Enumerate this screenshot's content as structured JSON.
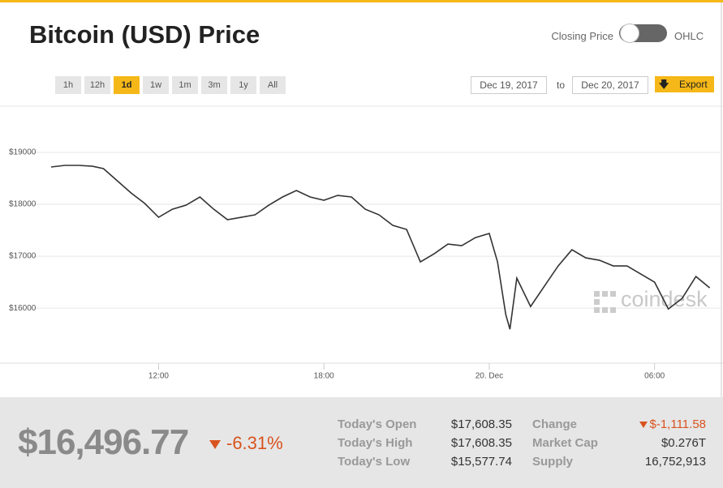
{
  "header": {
    "title": "Bitcoin (USD) Price",
    "toggle_left": "Closing Price",
    "toggle_right": "OHLC"
  },
  "ranges": {
    "options": [
      "1h",
      "12h",
      "1d",
      "1w",
      "1m",
      "3m",
      "1y",
      "All"
    ],
    "active": "1d"
  },
  "dates": {
    "from": "Dec 19, 2017",
    "separator": "to",
    "to": "Dec 20, 2017",
    "export": "Export"
  },
  "chart_data": {
    "type": "line",
    "color": "#333333",
    "grid": true,
    "watermark": "coindesk",
    "x": [
      8.1,
      8.6,
      9.1,
      9.6,
      10.0,
      10.5,
      11.0,
      11.5,
      12.0,
      12.5,
      13.0,
      13.5,
      14.0,
      14.5,
      15.0,
      15.5,
      16.0,
      16.5,
      17.0,
      17.5,
      18.0,
      18.5,
      19.0,
      19.5,
      20.0,
      20.5,
      21.0,
      21.5,
      22.0,
      22.5,
      23.0,
      23.5,
      24.0,
      24.3,
      24.6,
      24.75,
      25.0,
      25.5,
      26.0,
      26.5,
      27.0,
      27.5,
      28.0,
      28.5,
      29.0,
      29.5,
      30.0,
      30.5,
      31.0,
      31.5,
      32.0
    ],
    "values": [
      18719,
      18750,
      18750,
      18734,
      18688,
      18453,
      18219,
      18016,
      17750,
      17906,
      17984,
      18141,
      17906,
      17703,
      17750,
      17797,
      17984,
      18141,
      18266,
      18141,
      18078,
      18172,
      18141,
      17906,
      17797,
      17594,
      17516,
      16891,
      17047,
      17234,
      17203,
      17359,
      17438,
      16891,
      15875,
      15594,
      16578,
      16031,
      16422,
      16813,
      17125,
      16969,
      16922,
      16813,
      16813,
      16656,
      16500,
      15984,
      16188,
      16609,
      16391
    ],
    "xlim": [
      8.1,
      32.1
    ],
    "ylim": [
      14940,
      19890
    ],
    "xticks": [
      {
        "value": 12,
        "label": "12:00"
      },
      {
        "value": 18,
        "label": "18:00"
      },
      {
        "value": 24,
        "label": "20. Dec"
      },
      {
        "value": 30,
        "label": "06:00"
      }
    ],
    "yticks": [
      {
        "value": 16000,
        "label": "$16000"
      },
      {
        "value": 17000,
        "label": "$17000"
      },
      {
        "value": 18000,
        "label": "$18000"
      },
      {
        "value": 19000,
        "label": "$19000"
      }
    ]
  },
  "summary": {
    "price": "$16,496.77",
    "change_pct": "-6.31%",
    "left": [
      {
        "label": "Today's Open",
        "value": "$17,608.35"
      },
      {
        "label": "Today's High",
        "value": "$17,608.35"
      },
      {
        "label": "Today's Low",
        "value": "$15,577.74"
      }
    ],
    "right": [
      {
        "label": "Change",
        "value": "$-1,111.58"
      },
      {
        "label": "Market Cap",
        "value": "$0.276T"
      },
      {
        "label": "Supply",
        "value": "16,752,913"
      }
    ]
  }
}
